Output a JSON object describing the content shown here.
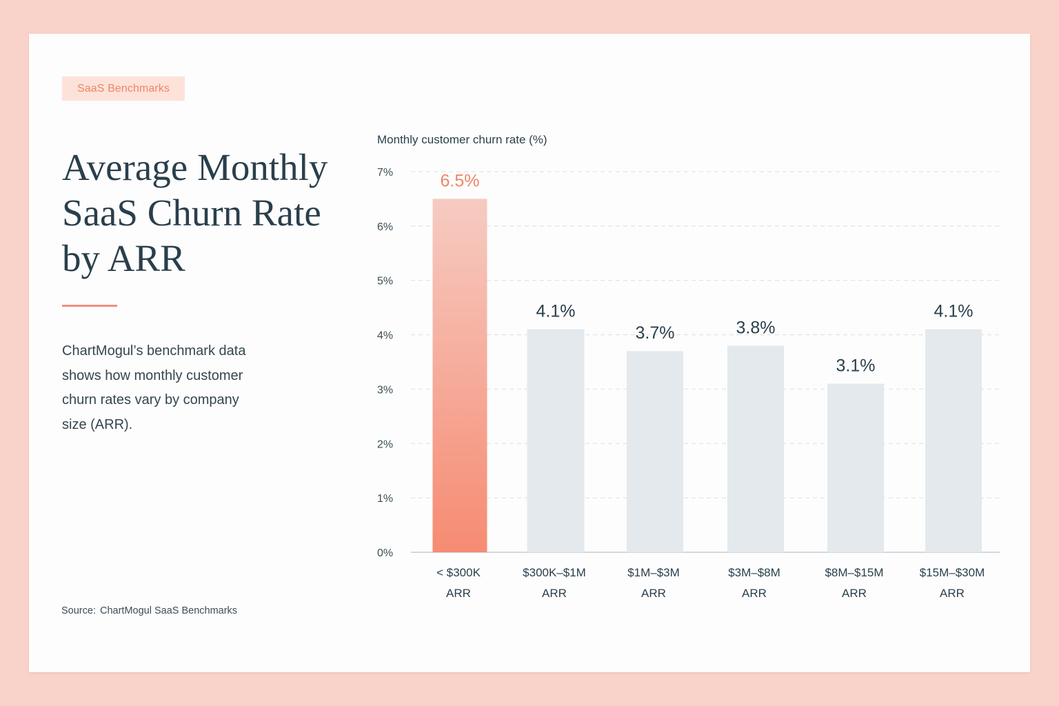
{
  "tag_label": "SaaS Benchmarks",
  "title_lines": [
    "Average Monthly",
    "SaaS Churn Rate",
    "by ARR"
  ],
  "description_lines": [
    "ChartMogul’s benchmark data",
    "shows how monthly customer",
    "churn rates vary by company",
    "size (ARR)."
  ],
  "source": {
    "label": "Source:",
    "text": "ChartMogul SaaS Benchmarks"
  },
  "colors": {
    "page_background": "#f9d3ca",
    "accent": "#ef8467",
    "highlight_bar_top": "#f6cbc2",
    "highlight_bar_bottom": "#f68b72",
    "bar": "#e3e9ec",
    "text_dark": "#2a3f4b",
    "gridline": "#dddddd"
  },
  "chart_data": {
    "type": "bar",
    "ylabel": "Monthly customer churn rate (%)",
    "ylim": [
      0,
      7
    ],
    "yticks": [
      0,
      1,
      2,
      3,
      4,
      5,
      6,
      7
    ],
    "ytick_labels": [
      "0%",
      "1%",
      "2%",
      "3%",
      "4%",
      "5%",
      "6%",
      "7%"
    ],
    "grid": "horizontal dashed",
    "categories": [
      [
        "< $300K",
        "ARR"
      ],
      [
        "$300K–$1M",
        "ARR"
      ],
      [
        "$1M–$3M",
        "ARR"
      ],
      [
        "$3M–$8M",
        "ARR"
      ],
      [
        "$8M–$15M",
        "ARR"
      ],
      [
        "$15M–$30M",
        "ARR"
      ]
    ],
    "values": [
      6.5,
      4.1,
      3.7,
      3.8,
      3.1,
      4.1
    ],
    "value_labels": [
      "6.5%",
      "4.1%",
      "3.7%",
      "3.8%",
      "3.1%",
      "4.1%"
    ],
    "highlight_index": 0
  }
}
